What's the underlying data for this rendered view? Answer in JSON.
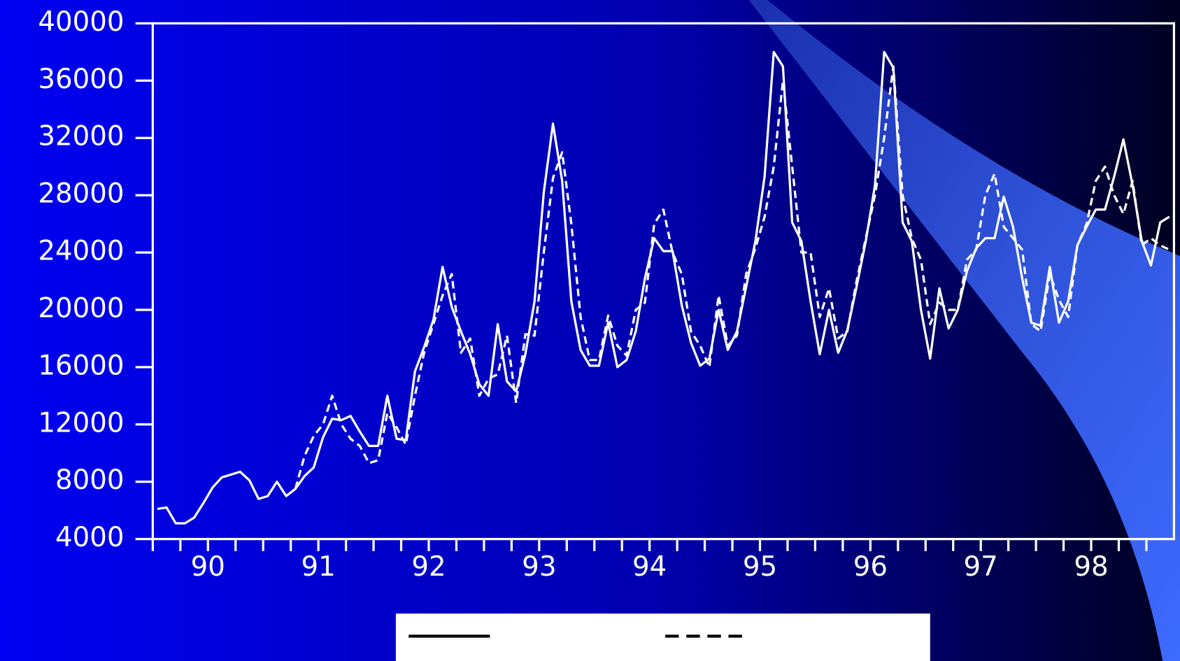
{
  "chart_data": {
    "type": "line",
    "categories": [
      null,
      null,
      null,
      null,
      null,
      null,
      "90",
      null,
      null,
      null,
      null,
      null,
      null,
      null,
      null,
      null,
      null,
      null,
      "91",
      null,
      null,
      null,
      null,
      null,
      null,
      null,
      null,
      null,
      null,
      null,
      "92",
      null,
      null,
      null,
      null,
      null,
      null,
      null,
      null,
      null,
      null,
      null,
      "93",
      null,
      null,
      null,
      null,
      null,
      null,
      null,
      null,
      null,
      null,
      null,
      "94",
      null,
      null,
      null,
      null,
      null,
      null,
      null,
      null,
      null,
      null,
      null,
      "95",
      null,
      null,
      null,
      null,
      null,
      null,
      null,
      null,
      null,
      null,
      null,
      "96",
      null,
      null,
      null,
      null,
      null,
      null,
      null,
      null,
      null,
      null,
      null,
      "97",
      null,
      null,
      null,
      null,
      null,
      null,
      null,
      null,
      null,
      null,
      null,
      "98",
      null,
      null,
      null,
      null,
      null,
      null,
      null,
      null
    ],
    "series": [
      {
        "color": "#ffffff",
        "dash": false,
        "values": [
          6100,
          6200,
          5100,
          5100,
          5500,
          6500,
          7600,
          8300,
          8500,
          8700,
          8100,
          6800,
          7000,
          8000,
          7000,
          7500,
          8400,
          9000,
          11100,
          12400,
          12300,
          12600,
          11500,
          10500,
          10500,
          14000,
          11000,
          10900,
          15700,
          17400,
          19300,
          23000,
          20200,
          18500,
          16900,
          14800,
          14000,
          19000,
          15000,
          14300,
          16900,
          20600,
          28200,
          33000,
          29000,
          20600,
          17200,
          16100,
          16100,
          19100,
          16000,
          16500,
          18500,
          22200,
          25000,
          24100,
          24100,
          20300,
          17700,
          16100,
          16600,
          20000,
          17200,
          18500,
          21600,
          24800,
          29300,
          38000,
          37000,
          26100,
          24800,
          20600,
          16900,
          20000,
          17000,
          18600,
          21600,
          24800,
          28700,
          38000,
          36900,
          26100,
          24800,
          20000,
          16600,
          21500,
          18700,
          20000,
          22700,
          24300,
          25000,
          25000,
          27900,
          25800,
          22200,
          19100,
          18900,
          23000,
          19100,
          20600,
          24500,
          25800,
          27000,
          27000,
          29300,
          31900,
          28700,
          24800,
          23100,
          26100,
          26500
        ]
      },
      {
        "color": "#ffffff",
        "dash": true,
        "values": [
          null,
          null,
          null,
          null,
          null,
          null,
          null,
          null,
          null,
          null,
          null,
          null,
          null,
          null,
          null,
          7500,
          9800,
          11200,
          12000,
          14000,
          12000,
          11000,
          10500,
          9300,
          9500,
          12800,
          11800,
          10600,
          14000,
          17000,
          19000,
          21000,
          22500,
          17000,
          18000,
          14000,
          15200,
          15500,
          18200,
          13500,
          18300,
          18200,
          24000,
          29200,
          31000,
          26000,
          19500,
          16500,
          16500,
          19600,
          17500,
          16800,
          20000,
          20500,
          26000,
          27000,
          24000,
          22500,
          18500,
          17500,
          16000,
          21000,
          17500,
          18200,
          22500,
          24300,
          26500,
          30000,
          36000,
          30000,
          24000,
          24000,
          19500,
          21500,
          18000,
          18500,
          22000,
          25000,
          28000,
          32000,
          37000,
          28000,
          25000,
          23500,
          19000,
          20500,
          20000,
          20000,
          23500,
          24200,
          28000,
          29500,
          25800,
          25000,
          24200,
          19000,
          18500,
          22500,
          20700,
          19500,
          24500,
          26000,
          29000,
          30000,
          28000,
          26700,
          29000,
          24500,
          25000,
          24500,
          24200
        ]
      }
    ],
    "ylim": [
      4000,
      40000
    ],
    "yticks": [
      4000,
      8000,
      12000,
      16000,
      20000,
      24000,
      28000,
      32000,
      36000,
      40000
    ],
    "grid": false,
    "legend": "bottom"
  }
}
